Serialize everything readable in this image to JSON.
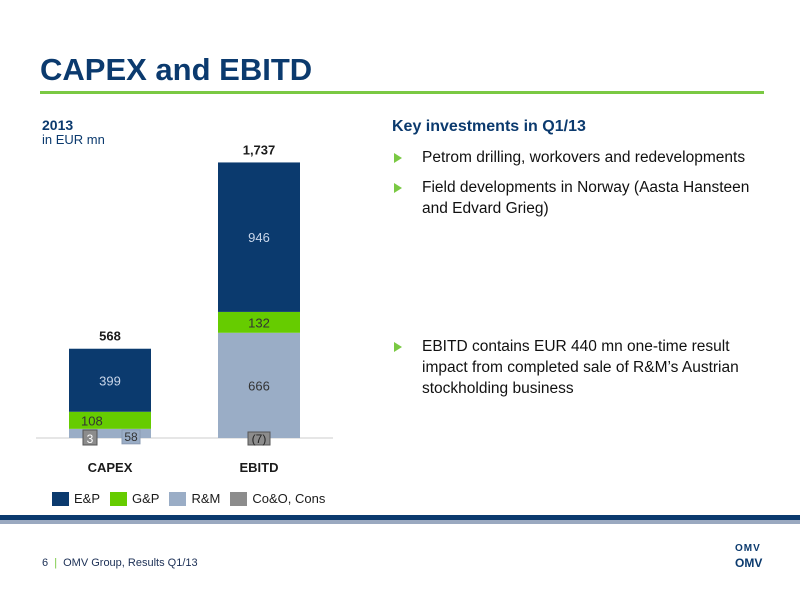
{
  "slide": {
    "title": "CAPEX and EBITD",
    "year_label": "2013",
    "unit_label": "in EUR mn"
  },
  "key_investments": {
    "title": "Key investments in Q1/13",
    "bullets": [
      "Petrom drilling, workovers and redevelopments",
      "Field developments in Norway (Aasta Hansteen and Edvard Grieg)"
    ],
    "note_bullets": [
      "EBITD contains EUR 440 mn one-time result impact from completed sale of R&M’s Austrian stockholding business"
    ]
  },
  "footer": {
    "page": "6",
    "separator": "|",
    "text": "OMV Group, Results Q1/13"
  },
  "logo": {
    "mark_text": "OMV",
    "word_text": "OMV"
  },
  "colors": {
    "title": "#0b3a6e",
    "accent_green": "#7ac943",
    "ep": "#0b3a6e",
    "gp": "#66cc00",
    "rm": "#9aadc6",
    "coo": "#8c8c8c"
  },
  "chart_data": {
    "type": "bar",
    "stacked": true,
    "categories": [
      "CAPEX",
      "EBITD"
    ],
    "totals": [
      "568",
      "1,737"
    ],
    "series": [
      {
        "name": "E&P",
        "values": [
          399,
          946
        ],
        "labels": [
          "399",
          "946"
        ],
        "color": "#0b3a6e"
      },
      {
        "name": "G&P",
        "values": [
          108,
          132
        ],
        "labels": [
          "108",
          "132"
        ],
        "color": "#66cc00"
      },
      {
        "name": "R&M",
        "values": [
          58,
          666
        ],
        "labels": [
          "58",
          "666"
        ],
        "color": "#9aadc6"
      },
      {
        "name": "Co&O, Cons",
        "values": [
          3,
          -7
        ],
        "labels": [
          "3",
          "(7)"
        ],
        "color": "#8c8c8c"
      }
    ],
    "legend": [
      "E&P",
      "G&P",
      "R&M",
      "Co&O, Cons"
    ]
  }
}
